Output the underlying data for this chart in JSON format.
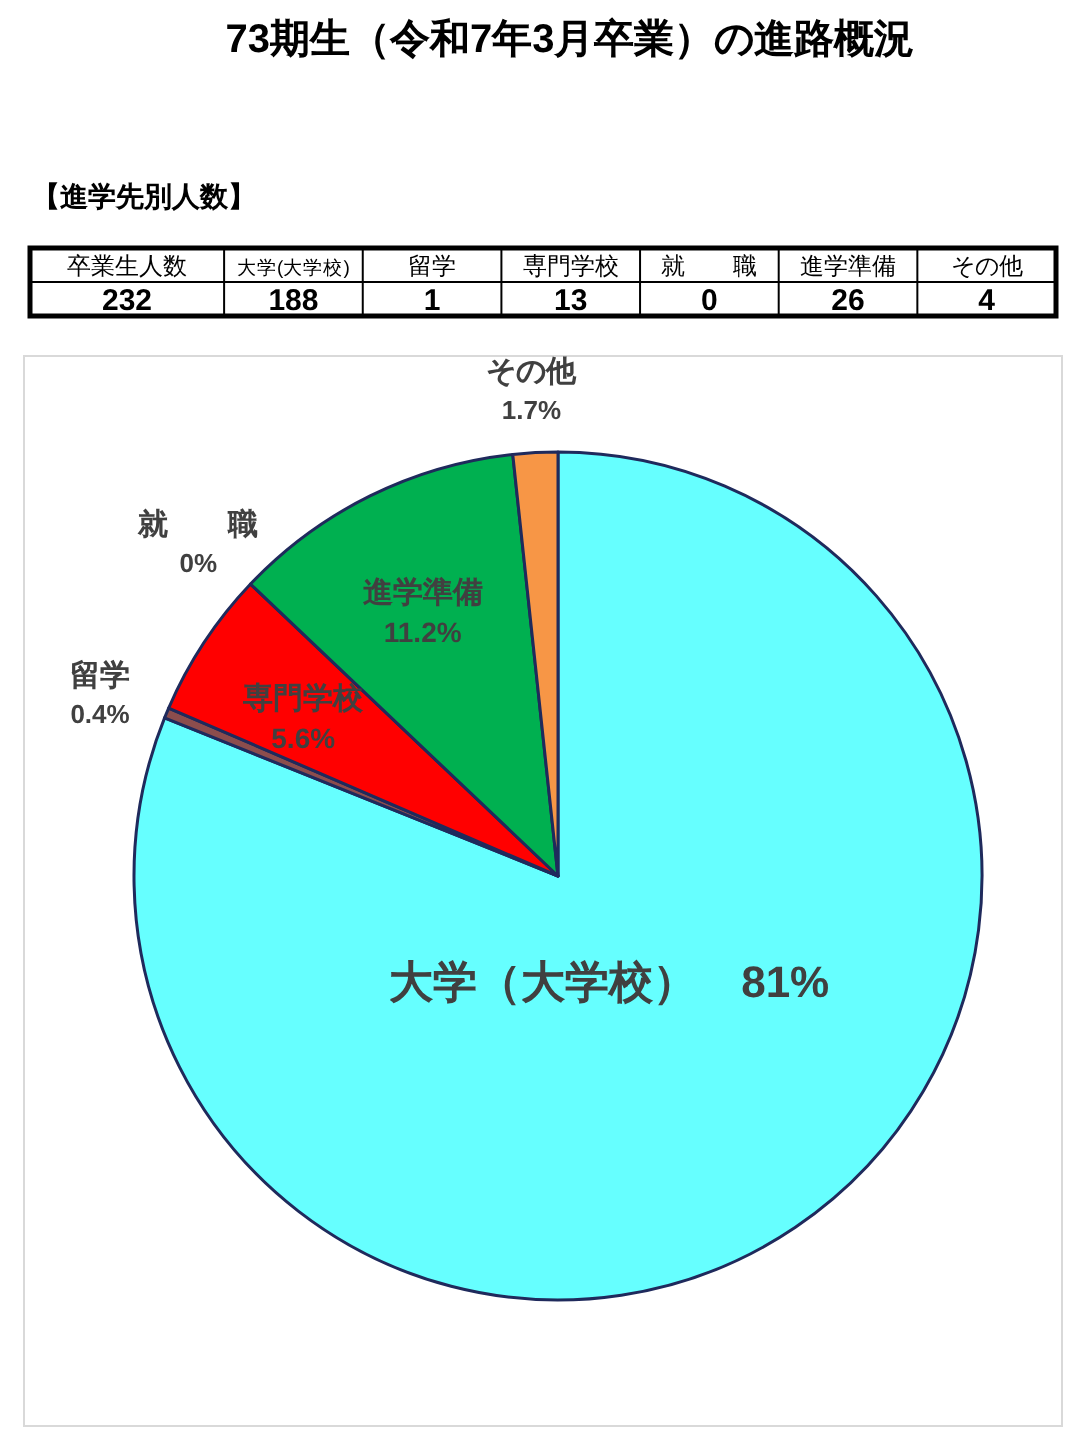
{
  "chart_data": {
    "type": "pie",
    "title": "73期生（令和7年3月卒業）の進路概況",
    "subtitle": "【進学先別人数】",
    "categories": [
      "大学（大学校）",
      "留学",
      "専門学校",
      "就　　職",
      "進学準備",
      "その他"
    ],
    "values": [
      81,
      0.4,
      5.6,
      0,
      11.2,
      1.7
    ],
    "value_labels": [
      "81%",
      "0.4%",
      "5.6%",
      "0%",
      "11.2%",
      "1.7%"
    ],
    "colors": [
      "#66ffff",
      "#8c4d4d",
      "#ff0000",
      "#7f7f7f",
      "#00b050",
      "#f79646"
    ],
    "annotations": [
      "卒業生人数",
      "大学(大学校)",
      "留学",
      "専門学校",
      "就　　職",
      "進学準備",
      "その他",
      "232",
      "188",
      "1",
      "13",
      "0",
      "26",
      "4"
    ]
  }
}
